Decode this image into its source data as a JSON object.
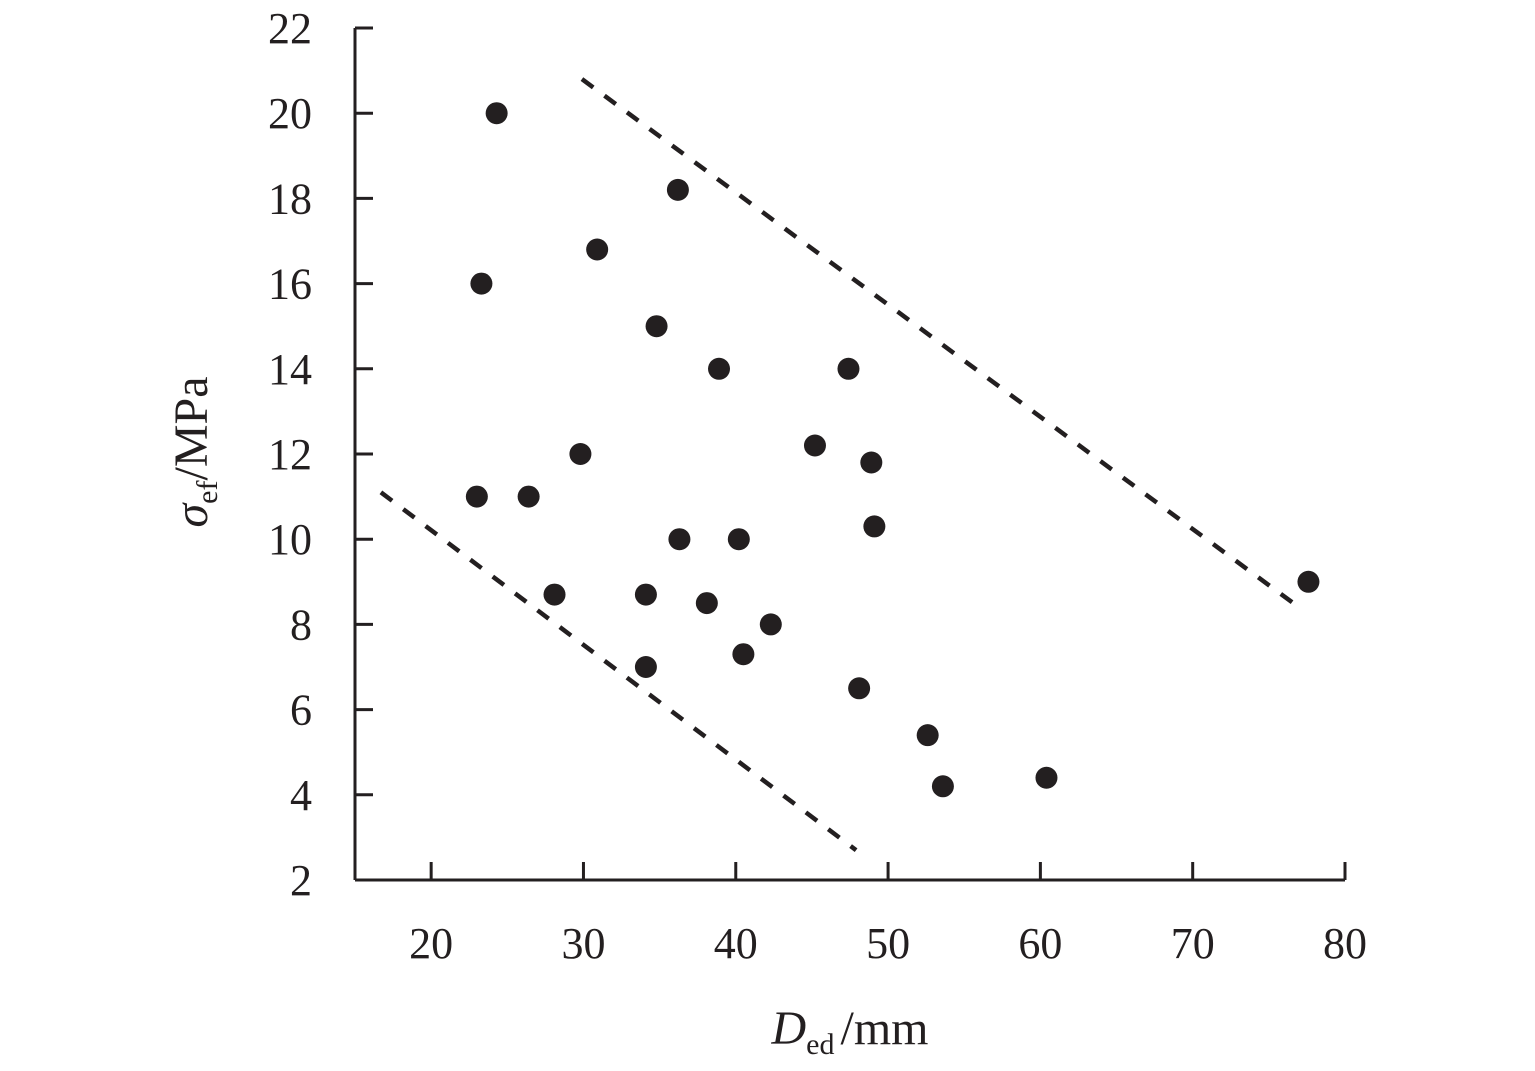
{
  "chart_data": {
    "type": "scatter",
    "xlabel": {
      "symbol": "D",
      "subscript": "ed",
      "unit": "/mm"
    },
    "ylabel": {
      "symbol": "σ",
      "subscript": "ef",
      "unit": "/MPa"
    },
    "xlim": [
      15,
      80
    ],
    "ylim": [
      2,
      22
    ],
    "xticks": [
      20,
      30,
      40,
      50,
      60,
      70,
      80
    ],
    "yticks": [
      2,
      4,
      6,
      8,
      10,
      12,
      14,
      16,
      18,
      20,
      22
    ],
    "grid": false,
    "legend": "none",
    "colors": {
      "points": "#231f20",
      "axes": "#231f20"
    },
    "series": [
      {
        "points": [
          [
            24.3,
            20.0
          ],
          [
            36.2,
            18.2
          ],
          [
            30.9,
            16.8
          ],
          [
            23.3,
            16.0
          ],
          [
            34.8,
            15.0
          ],
          [
            38.9,
            14.0
          ],
          [
            47.4,
            14.0
          ],
          [
            45.2,
            12.2
          ],
          [
            29.8,
            12.0
          ],
          [
            48.9,
            11.8
          ],
          [
            23.0,
            11.0
          ],
          [
            26.4,
            11.0
          ],
          [
            49.1,
            10.3
          ],
          [
            36.3,
            10.0
          ],
          [
            40.2,
            10.0
          ],
          [
            77.6,
            9.0
          ],
          [
            28.1,
            8.7
          ],
          [
            34.1,
            8.7
          ],
          [
            38.1,
            8.5
          ],
          [
            42.3,
            8.0
          ],
          [
            40.5,
            7.3
          ],
          [
            34.1,
            7.0
          ],
          [
            48.1,
            6.5
          ],
          [
            52.6,
            5.4
          ],
          [
            60.4,
            4.4
          ],
          [
            53.6,
            4.2
          ]
        ]
      }
    ],
    "bounds": [
      {
        "style": "dashed",
        "from": [
          29.9,
          20.8
        ],
        "to": [
          76.6,
          8.5
        ]
      },
      {
        "style": "dashed",
        "from": [
          16.7,
          11.1
        ],
        "to": [
          47.9,
          2.7
        ]
      }
    ]
  }
}
